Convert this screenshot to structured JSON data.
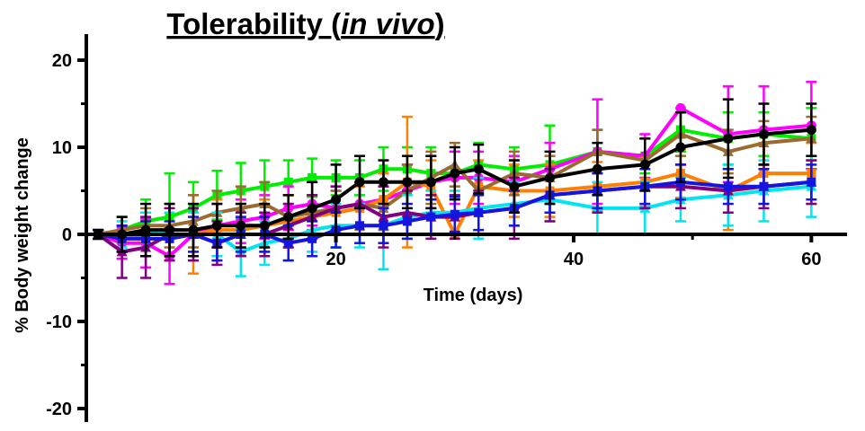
{
  "chart_data": {
    "type": "line",
    "title_main": "Tolerability (",
    "title_italic": "in vivo",
    "title_close": ")",
    "xlabel": "Time (days)",
    "ylabel": "% Body weight change",
    "xlim": [
      -1,
      63
    ],
    "ylim": [
      -21,
      22
    ],
    "xticks": [
      20,
      40,
      60
    ],
    "yticks": [
      -20,
      -10,
      0,
      10,
      20
    ],
    "xtick_labels": [
      "20",
      "40",
      "60"
    ],
    "ytick_labels": [
      "-20",
      "-10",
      "0",
      "10",
      "20"
    ],
    "x": [
      0,
      2,
      4,
      6,
      8,
      10,
      12,
      14,
      16,
      18,
      20,
      22,
      24,
      26,
      28,
      30,
      32,
      35,
      38,
      42,
      46,
      49,
      53,
      56,
      60
    ],
    "series": [
      {
        "color": "#00ee00",
        "values": [
          0,
          0.5,
          1.5,
          2,
          3,
          4.5,
          5,
          5.5,
          6,
          6.5,
          6.5,
          6.5,
          7.5,
          7.5,
          7,
          7,
          8,
          7.5,
          8,
          9.5,
          9,
          12,
          11,
          11.5,
          11
        ],
        "err": [
          0.5,
          1.5,
          2.5,
          5,
          3,
          2.8,
          3.2,
          3,
          2.5,
          2.2,
          2,
          2,
          2.5,
          2.5,
          3,
          2.5,
          2.5,
          2.5,
          4.5,
          2.5,
          2,
          2.5,
          3,
          2.5,
          3.5
        ],
        "marker": "square"
      },
      {
        "color": "#ff00ff",
        "values": [
          0,
          -1,
          -1,
          -2.5,
          0,
          1,
          1.5,
          2,
          3,
          3.5,
          3,
          3.5,
          4,
          5,
          6,
          6.5,
          6.5,
          6,
          7.5,
          9.5,
          9,
          14.5,
          11.5,
          12,
          12.5
        ],
        "err": [
          0.5,
          1.8,
          2.8,
          3.2,
          3,
          2.5,
          2.5,
          2.5,
          2.5,
          2.5,
          2.5,
          2.5,
          3,
          3,
          3,
          3,
          3,
          3,
          3,
          6,
          2.5,
          0,
          5.5,
          5,
          5
        ],
        "marker": "circle"
      },
      {
        "color": "#ff8000",
        "values": [
          0,
          -0.5,
          0,
          0,
          0,
          0.5,
          0.5,
          1,
          1.5,
          2,
          2.5,
          3,
          4,
          6,
          5.5,
          0,
          5.5,
          5,
          5,
          5.5,
          6,
          7,
          5,
          7,
          7
        ],
        "err": [
          0.5,
          1.5,
          2.5,
          2.5,
          4.5,
          3.5,
          3,
          3,
          3,
          2.5,
          2.5,
          2.5,
          3,
          7.5,
          3,
          0,
          3,
          3,
          3,
          2.8,
          2.8,
          2.8,
          4.5,
          3.5,
          3.5
        ],
        "marker": "square"
      },
      {
        "color": "#9a6a30",
        "values": [
          0,
          0.5,
          1,
          1,
          1.5,
          2.5,
          3,
          3.5,
          2,
          2.5,
          3,
          3.5,
          3,
          5,
          6.5,
          8,
          5,
          7,
          6.5,
          9.5,
          8.5,
          11.5,
          9.5,
          10.5,
          11
        ],
        "err": [
          0.5,
          1.5,
          2,
          2.5,
          3,
          2.5,
          2.5,
          2.5,
          2.5,
          2,
          2,
          2.5,
          2.5,
          3,
          3,
          2.5,
          2.5,
          2.5,
          2.5,
          2.5,
          2.5,
          2.5,
          2.5,
          2.5,
          2.5
        ],
        "marker": "triangle"
      },
      {
        "color": "#00e5ee",
        "values": [
          0,
          0,
          0.5,
          0,
          0,
          0,
          -2,
          -1,
          -0.5,
          0.5,
          1,
          1,
          1,
          2,
          2.5,
          2.5,
          3,
          3.5,
          4,
          3,
          3,
          4,
          4.5,
          5,
          5.5
        ],
        "err": [
          0.5,
          1.5,
          2,
          2.5,
          2.5,
          2.5,
          2.8,
          2.5,
          2.5,
          2.5,
          2.5,
          2.5,
          5,
          2.5,
          2.5,
          2.5,
          3.5,
          2.5,
          2.5,
          3,
          3,
          2.5,
          3.5,
          3.5,
          3.5
        ],
        "marker": "triangle"
      },
      {
        "color": "#800080",
        "values": [
          0,
          -2,
          -1.5,
          0,
          0,
          -1,
          0,
          0,
          1,
          2,
          3,
          3.5,
          2,
          2.5,
          2,
          2,
          2.5,
          3,
          4.5,
          5,
          5.5,
          5.5,
          5,
          5.5,
          6
        ],
        "err": [
          0.5,
          3,
          3.5,
          3,
          3,
          2.5,
          2.5,
          2.5,
          2.5,
          2.5,
          2.5,
          2.5,
          3.5,
          2.5,
          2.5,
          2.5,
          2.5,
          3.5,
          3,
          2.5,
          2.5,
          2.5,
          2.5,
          2.5,
          2.5
        ],
        "marker": "triangle"
      },
      {
        "color": "#1515e0",
        "values": [
          0,
          -0.5,
          -0.5,
          -0.5,
          0,
          -1,
          0,
          0,
          -1,
          -0.5,
          0.5,
          1,
          1,
          1.5,
          2,
          2.3,
          2.5,
          3,
          4.5,
          5,
          5.5,
          6,
          5.5,
          5.5,
          6
        ],
        "err": [
          0.5,
          1.5,
          2,
          2,
          2,
          2,
          2,
          2,
          2,
          2,
          2,
          2,
          2,
          2,
          2,
          2,
          2,
          2,
          2,
          2,
          2,
          2,
          2,
          2,
          2
        ],
        "marker": "square"
      },
      {
        "color": "#000000",
        "values": [
          0,
          0,
          0.5,
          0.5,
          0.5,
          1,
          1,
          1,
          2,
          3,
          4,
          6,
          6,
          6,
          6,
          7,
          7.5,
          5.5,
          6.5,
          7.5,
          8,
          10,
          11,
          11.5,
          12
        ],
        "err": [
          0.5,
          2,
          3,
          3,
          3,
          2.5,
          2.5,
          2.5,
          2.5,
          3,
          4,
          3,
          2.5,
          3,
          3,
          3,
          2.8,
          3,
          3,
          3,
          3,
          4,
          4.5,
          3.5,
          3
        ],
        "marker": "circle"
      }
    ]
  }
}
